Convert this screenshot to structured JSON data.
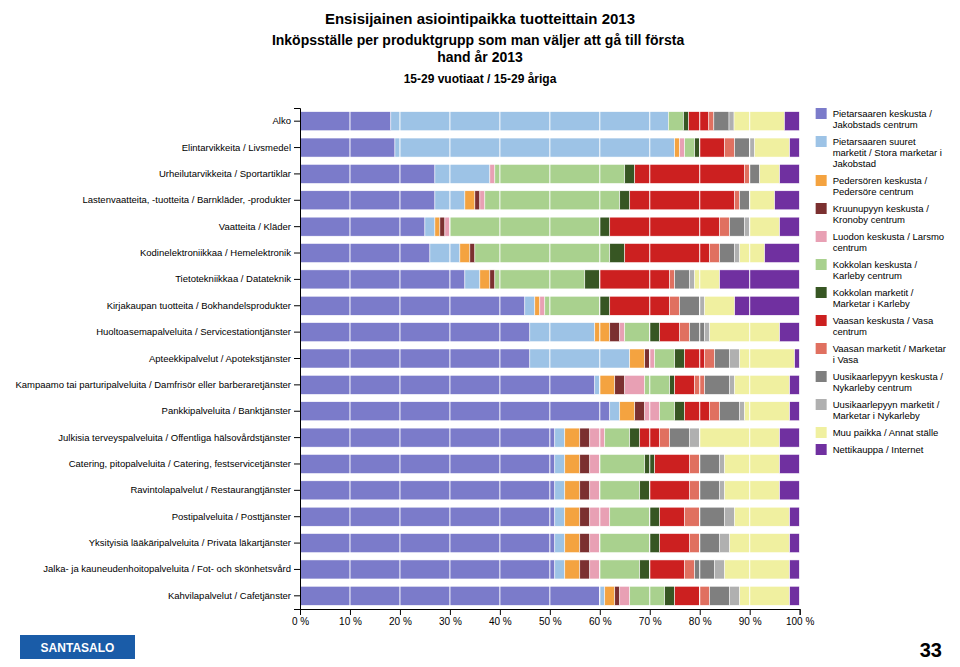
{
  "chart_data": {
    "type": "bar",
    "orientation": "horizontal",
    "stacked": true,
    "title": "Ensisijainen asiointipaikka tuotteittain 2013",
    "subtitle": [
      "Inköpsställe per produktgrupp som man väljer att gå till första\nhand år 2013",
      "15-29 vuotiaat / 15-29 åriga"
    ],
    "annotations": [
      "SANTASALO",
      "33"
    ],
    "categories": [
      "Alko",
      "Elintarvikkeita / Livsmedel",
      "Urheilutarvikkeita / Sportartiklar",
      "Lastenvaatteita, -tuotteita / Barnkläder, -produkter",
      "Vaatteita / Kläder",
      "Kodinelektroniikkaa / Hemelektronik",
      "Tietotekniikkaa / Datateknik",
      "Kirjakaupan tuotteita / Bokhandelsprodukter",
      "Huoltoasemapalveluita / Servicestationtjänster",
      "Apteekkipalvelut / Apotekstjänster",
      "Kampaamo tai parturipalveluita / Damfrisör eller barberaretjänster",
      "Pankkipalveluita / Banktjänster",
      "Julkisia terveyspalveluita / Offentliga hälsovårdstjänster",
      "Catering, pitopalveluita / Catering, festservicetjänster",
      "Ravintolapalvelut / Restaurangtjänster",
      "Postipalveluita / Posttjänster",
      "Yksityisiä lääkäripalveluita / Privata läkartjänster",
      "Jalka- ja kauneudenhoitopalveluita / Fot- och skönhetsvård",
      "Kahvilapalvelut / Cafetjänster"
    ],
    "series": [
      {
        "name": "Pietarsaaren keskusta /\nJakobstads centrum",
        "color": "#7b7bca",
        "values": [
          18.181818181818183,
          19,
          27,
          27,
          25,
          26,
          33,
          45,
          46,
          46,
          59,
          62,
          51,
          51,
          51,
          51,
          51,
          51,
          60
        ]
      },
      {
        "name": "Pietarsaaren suuret\nmarketit / Stora marketar i\nJakobstad",
        "color": "#9dc3e6",
        "values": [
          55.55555555555556,
          56,
          11,
          6,
          2,
          6,
          3,
          2,
          13,
          20,
          1,
          2,
          2,
          2,
          2,
          2,
          2,
          2,
          1
        ]
      },
      {
        "name": "Pedersören keskusta /\nPedersöre centrum",
        "color": "#f4a340",
        "values": [
          0,
          1,
          0,
          2,
          1,
          2,
          2,
          1,
          3,
          3,
          3,
          3,
          3,
          3,
          3,
          3,
          3,
          3,
          2
        ]
      },
      {
        "name": "Kruunupyyn keskusta /\nKronoby centrum",
        "color": "#7b3030",
        "values": [
          0,
          0,
          0,
          1,
          1,
          1,
          1,
          0,
          2,
          1,
          2,
          2,
          2,
          2,
          2,
          2,
          2,
          2,
          1
        ]
      },
      {
        "name": "Luodon keskusta / Larsmo\ncentrum",
        "color": "#e8a0b4",
        "values": [
          0,
          1,
          1,
          1,
          1,
          0,
          0,
          1,
          1,
          1,
          4,
          3,
          3,
          2,
          2,
          4,
          2,
          2,
          2
        ]
      },
      {
        "name": "Kokkolan keskusta /\nKarleby centrum",
        "color": "#a9d18e",
        "values": [
          3.0303030303030303,
          2,
          26,
          27,
          30,
          27,
          18,
          11,
          5,
          4,
          5,
          3,
          5,
          9,
          8,
          8,
          10,
          8,
          7
        ]
      },
      {
        "name": "Kokkolan marketit /\nMarketar i Karleby",
        "color": "#375623",
        "values": [
          1.0101010101010102,
          1,
          2,
          2,
          2,
          3,
          3,
          2,
          2,
          2,
          1,
          2,
          2,
          2,
          2,
          2,
          2,
          2,
          2
        ]
      },
      {
        "name": "Vaasan keskusta / Vasa\ncentrum",
        "color": "#cc2020",
        "values": [
          4.040404040404041,
          5,
          22,
          21,
          22,
          17,
          14,
          12,
          4,
          4,
          4,
          5,
          4,
          7,
          8,
          5,
          6,
          7,
          5
        ]
      },
      {
        "name": "Vaasan marketit / Marketar\ni Vasa",
        "color": "#e07060",
        "values": [
          1.0101010101010102,
          2,
          1,
          1,
          2,
          2,
          1,
          2,
          2,
          2,
          2,
          2,
          2,
          2,
          2,
          3,
          2,
          2,
          2
        ]
      },
      {
        "name": "Uusikaarlepyyn keskusta /\nNykarleby centrum",
        "color": "#7f7f7f",
        "values": [
          3.0303030303030303,
          3,
          2,
          2,
          3,
          3,
          3,
          4,
          3,
          3,
          5,
          4,
          4,
          4,
          4,
          5,
          4,
          4,
          4
        ]
      },
      {
        "name": "Uusikaarlepyyn marketit /\nMarketar i Nykarleby",
        "color": "#b0b0b0",
        "values": [
          1.0101010101010102,
          1,
          0,
          0,
          1,
          1,
          1,
          1,
          1,
          2,
          1,
          1,
          2,
          1,
          1,
          2,
          2,
          2,
          2
        ]
      },
      {
        "name": "Muu paikka / Annat ställe",
        "color": "#f0f0a0",
        "values": [
          10.101010101010102,
          7,
          4,
          5,
          6,
          5,
          5,
          6,
          14,
          11,
          11,
          9,
          16,
          11,
          11,
          11,
          12,
          13,
          10
        ]
      },
      {
        "name": "Nettikauppa / Internet",
        "color": "#7030a0",
        "values": [
          3.0303030303030303,
          2,
          4,
          5,
          4,
          7,
          16,
          13,
          4,
          1,
          2,
          2,
          4,
          4,
          4,
          2,
          2,
          2,
          2
        ]
      }
    ],
    "xlim": [
      0,
      100
    ],
    "xticks": [
      {
        "value": 0,
        "label": "0 %"
      },
      {
        "value": 10,
        "label": "10 %"
      },
      {
        "value": 20,
        "label": "20 %"
      },
      {
        "value": 30,
        "label": "30 %"
      },
      {
        "value": 40,
        "label": "40 %"
      },
      {
        "value": 50,
        "label": "50 %"
      },
      {
        "value": 60,
        "label": "60 %"
      },
      {
        "value": 70,
        "label": "70 %"
      },
      {
        "value": 80,
        "label": "80 %"
      },
      {
        "value": 90,
        "label": "90 %"
      },
      {
        "value": 100,
        "label": "100 %"
      }
    ],
    "grid": true,
    "legend": "right"
  }
}
